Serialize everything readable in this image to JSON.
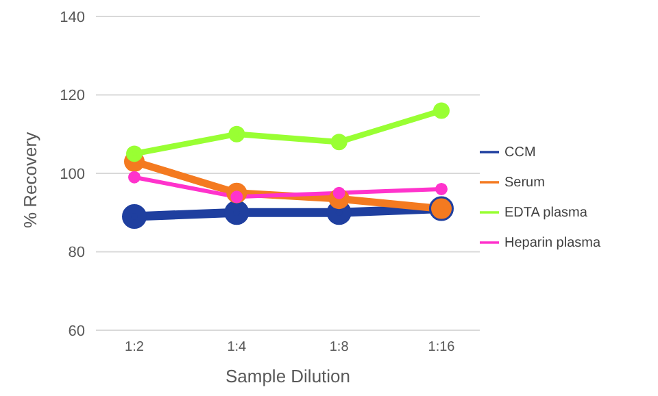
{
  "chart_data": {
    "type": "line",
    "xlabel": "Sample Dilution",
    "ylabel": "% Recovery",
    "categories": [
      "1:2",
      "1:4",
      "1:8",
      "1:16"
    ],
    "series": [
      {
        "name": "CCM",
        "color": "#1f3f9f",
        "values": [
          89,
          90,
          90,
          91
        ]
      },
      {
        "name": "Serum",
        "color": "#f47a20",
        "values": [
          103,
          95,
          93.5,
          91
        ]
      },
      {
        "name": "EDTA plasma",
        "color": "#99ff33",
        "values": [
          105,
          110,
          108,
          116
        ]
      },
      {
        "name": "Heparin plasma",
        "color": "#ff33cc",
        "values": [
          99,
          94,
          95,
          96
        ]
      }
    ],
    "ylim": [
      60,
      140
    ],
    "yticks": [
      60,
      80,
      100,
      120,
      140
    ],
    "grid": "y",
    "legend": "right",
    "marker": "circle",
    "line_style": "solid"
  }
}
